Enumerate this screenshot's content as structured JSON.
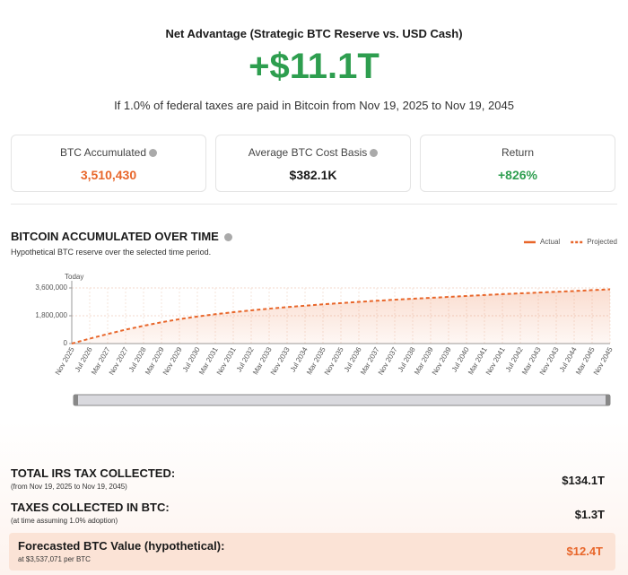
{
  "header": {
    "title": "Net Advantage (Strategic BTC Reserve vs. USD Cash)",
    "value": "+$11.1T",
    "subtitle": "If 1.0% of federal taxes are paid in Bitcoin from Nov 19, 2025 to Nov 19, 2045"
  },
  "stats": [
    {
      "label": "BTC Accumulated",
      "value": "3,510,430"
    },
    {
      "label": "Average BTC Cost Basis",
      "value": "$382.1K"
    },
    {
      "label": "Return",
      "value": "+826%"
    }
  ],
  "chart_data": {
    "type": "line",
    "title": "BITCOIN ACCUMULATED OVER TIME",
    "subtitle": "Hypothetical BTC reserve over the selected time period.",
    "annotation": "Today",
    "categories": [
      "Nov 2025",
      "Jul 2026",
      "Mar 2027",
      "Nov 2027",
      "Jul 2028",
      "Mar 2029",
      "Nov 2029",
      "Jul 2030",
      "Mar 2031",
      "Nov 2031",
      "Jul 2032",
      "Mar 2033",
      "Nov 2033",
      "Jul 2034",
      "Mar 2035",
      "Nov 2035",
      "Jul 2036",
      "Mar 2037",
      "Nov 2037",
      "Jul 2038",
      "Mar 2039",
      "Nov 2039",
      "Jul 2040",
      "Mar 2041",
      "Nov 2041",
      "Jul 2042",
      "Mar 2043",
      "Nov 2043",
      "Jul 2044",
      "Mar 2045",
      "Nov 2045"
    ],
    "series": [
      {
        "name": "Actual",
        "color": "#e8662a",
        "dashed": false,
        "values": [
          0,
          null,
          null,
          null,
          null,
          null,
          null,
          null,
          null,
          null,
          null,
          null,
          null,
          null,
          null,
          null,
          null,
          null,
          null,
          null,
          null,
          null,
          null,
          null,
          null,
          null,
          null,
          null,
          null,
          null,
          null
        ]
      },
      {
        "name": "Projected",
        "color": "#e8662a",
        "dashed": true,
        "values": [
          0,
          320000,
          620000,
          900000,
          1150000,
          1380000,
          1580000,
          1750000,
          1900000,
          2030000,
          2150000,
          2260000,
          2360000,
          2450000,
          2540000,
          2620000,
          2700000,
          2770000,
          2840000,
          2900000,
          2960000,
          3020000,
          3080000,
          3140000,
          3200000,
          3250000,
          3300000,
          3350000,
          3400000,
          3460000,
          3510000
        ]
      }
    ],
    "ylim": [
      0,
      3600000
    ],
    "yticks": [
      {
        "value": 0,
        "label": "0"
      },
      {
        "value": 1800000,
        "label": "1,800,000"
      },
      {
        "value": 3600000,
        "label": "3,600,000"
      }
    ],
    "grid": true,
    "legend": "top-right"
  },
  "summary": [
    {
      "label": "TOTAL IRS TAX COLLECTED:",
      "note": "(from Nov 19, 2025 to Nov 19, 2045)",
      "value": "$134.1T"
    },
    {
      "label": "TAXES COLLECTED IN BTC:",
      "note": "(at time assuming 1.0% adoption)",
      "value": "$1.3T"
    },
    {
      "label": "Forecasted BTC Value (hypothetical):",
      "note": "at $3,537,071 per BTC",
      "value": "$12.4T"
    }
  ]
}
